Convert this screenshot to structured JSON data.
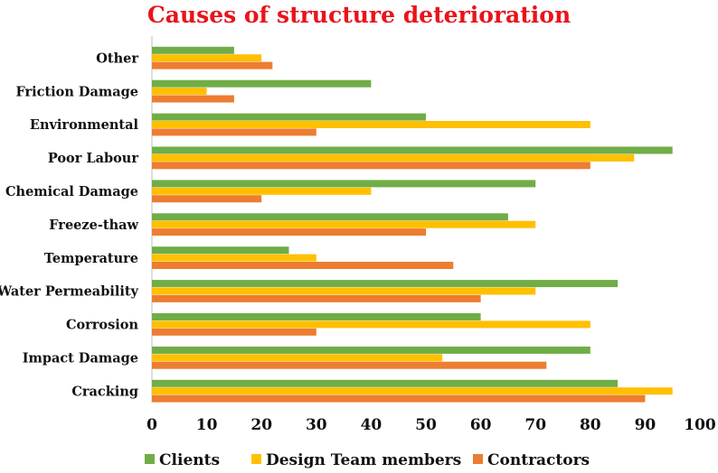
{
  "chart_data": {
    "type": "bar",
    "orientation": "horizontal",
    "title": "Causes of structure deterioration",
    "categories": [
      "Cracking",
      "Impact Damage",
      "Corrosion",
      "Water Permeability",
      "Temperature",
      "Freeze-thaw",
      "Chemical Damage",
      "Poor Labour",
      "Environmental",
      "Friction Damage",
      "Other"
    ],
    "series": [
      {
        "name": "Clients",
        "color": "#70ad47",
        "values": [
          85,
          80,
          60,
          85,
          25,
          65,
          70,
          95,
          50,
          40,
          15
        ]
      },
      {
        "name": "Design Team members",
        "color": "#ffc000",
        "values": [
          95,
          53,
          80,
          70,
          30,
          70,
          40,
          88,
          80,
          10,
          20
        ]
      },
      {
        "name": "Contractors",
        "color": "#ed7d31",
        "values": [
          90,
          72,
          30,
          60,
          55,
          50,
          20,
          80,
          30,
          15,
          22
        ]
      }
    ],
    "xlim": [
      0,
      100
    ],
    "xticks": [
      0,
      10,
      20,
      30,
      40,
      50,
      60,
      70,
      80,
      90,
      100
    ],
    "xlabel": "",
    "ylabel": "",
    "grid": false,
    "legend_position": "bottom"
  }
}
